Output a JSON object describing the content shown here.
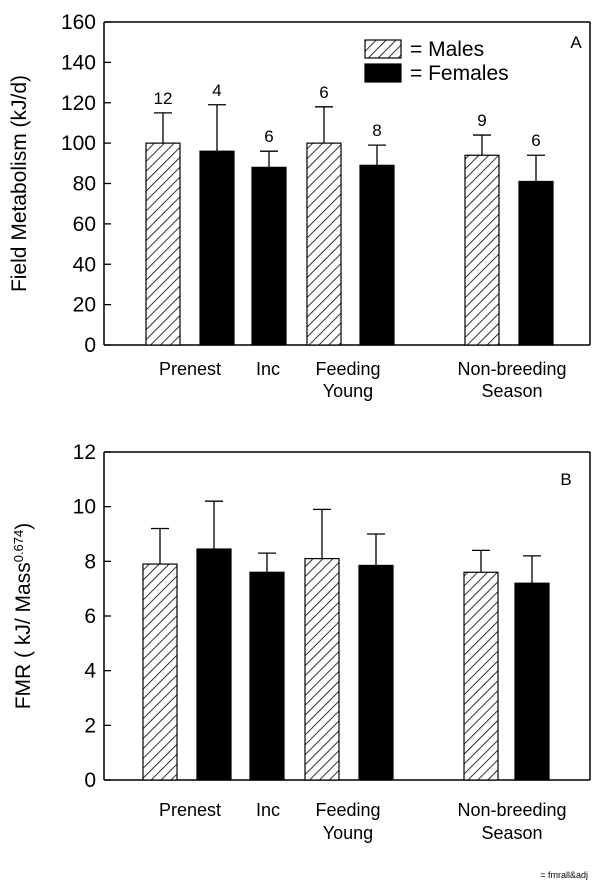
{
  "chart_data": [
    {
      "type": "bar",
      "panel_label": "A",
      "ylabel": "Field Metabolism (kJ/d)",
      "ylim": [
        0,
        160
      ],
      "yticks": [
        "0",
        "20",
        "40",
        "60",
        "80",
        "100",
        "120",
        "140",
        "160"
      ],
      "categories": [
        {
          "lines": [
            "Prenest"
          ]
        },
        {
          "lines": [
            "Inc"
          ]
        },
        {
          "lines": [
            "Feeding",
            "Young"
          ]
        },
        {
          "lines": [
            "Non-breeding",
            "Season"
          ]
        }
      ],
      "legend": {
        "position": "top-right",
        "entries": [
          "= Males",
          "= Females"
        ]
      },
      "series": [
        {
          "name": "Males",
          "style": "hatched",
          "values": [
            100,
            null,
            100,
            94
          ],
          "errors": [
            115,
            null,
            118,
            104
          ],
          "n_labels": [
            "12",
            "",
            "6",
            "9"
          ]
        },
        {
          "name": "Females",
          "style": "solid",
          "values": [
            96,
            88,
            89,
            81
          ],
          "errors": [
            119,
            96,
            99,
            94
          ],
          "n_labels": [
            "4",
            "6",
            "8",
            "6"
          ]
        }
      ]
    },
    {
      "type": "bar",
      "panel_label": "B",
      "ylabel": "FMR ( kJ/ Mass",
      "ylabel_sup": "0.674",
      "ylabel_close": ")",
      "ylim": [
        0,
        12
      ],
      "yticks": [
        "0",
        "2",
        "4",
        "6",
        "8",
        "10",
        "12"
      ],
      "categories": [
        {
          "lines": [
            "Prenest"
          ]
        },
        {
          "lines": [
            "Inc"
          ]
        },
        {
          "lines": [
            "Feeding",
            "Young"
          ]
        },
        {
          "lines": [
            "Non-breeding",
            "Season"
          ]
        }
      ],
      "series": [
        {
          "name": "Males",
          "style": "hatched",
          "values": [
            7.9,
            null,
            8.1,
            7.6
          ],
          "errors": [
            9.2,
            null,
            9.9,
            8.4
          ]
        },
        {
          "name": "Females",
          "style": "solid",
          "values": [
            8.45,
            7.6,
            7.85,
            7.2
          ],
          "errors": [
            10.2,
            8.3,
            9.0,
            8.2
          ]
        }
      ]
    }
  ],
  "footer": "= fmrall&adj",
  "colors": {
    "bar_fill": "#000000",
    "hatch": "#000000",
    "axis": "#000000"
  }
}
